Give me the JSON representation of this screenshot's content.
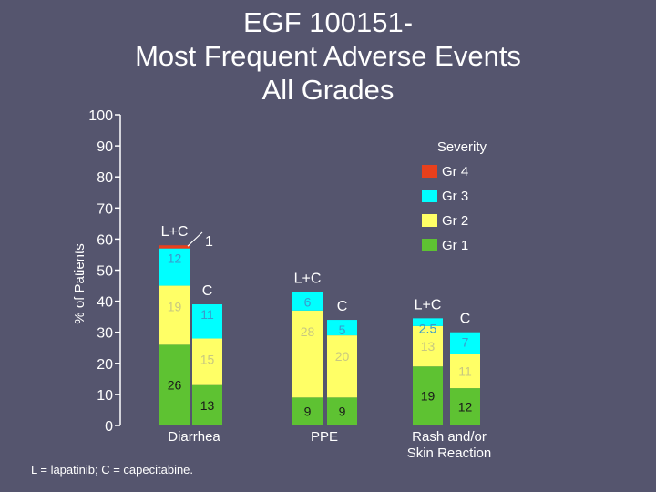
{
  "title_lines": [
    "EGF 100151-",
    "Most Frequent Adverse Events",
    "All Grades"
  ],
  "footnote": "L = lapatinib; C = capecitabine.",
  "colors": {
    "gr1": "#5ec232",
    "gr2": "#ffff66",
    "gr3": "#00ffff",
    "gr4": "#e8401c"
  },
  "chart_data": {
    "type": "bar",
    "stacked": true,
    "ylabel": "% of Patients",
    "ylim": [
      0,
      100
    ],
    "yticks": [
      0,
      10,
      20,
      30,
      40,
      50,
      60,
      70,
      80,
      90,
      100
    ],
    "categories": [
      "Diarrhea",
      "PPE",
      "Rash and/or\nSkin Reaction"
    ],
    "bars": [
      {
        "category": "Diarrhea",
        "group": "L+C",
        "segments": [
          26,
          19,
          12,
          1
        ],
        "labels": [
          "26",
          "19",
          "12",
          "1"
        ]
      },
      {
        "category": "Diarrhea",
        "group": "C",
        "segments": [
          13,
          15,
          11,
          0
        ],
        "labels": [
          "13",
          "15",
          "11",
          ""
        ]
      },
      {
        "category": "PPE",
        "group": "L+C",
        "segments": [
          9,
          28,
          6,
          0
        ],
        "labels": [
          "9",
          "28",
          "6",
          ""
        ]
      },
      {
        "category": "PPE",
        "group": "C",
        "segments": [
          9,
          20,
          5,
          0
        ],
        "labels": [
          "9",
          "20",
          "5",
          ""
        ]
      },
      {
        "category": "Rash and/or\nSkin Reaction",
        "group": "L+C",
        "segments": [
          19,
          13,
          2.5,
          0
        ],
        "labels": [
          "19",
          "13",
          "2.5",
          ""
        ]
      },
      {
        "category": "Rash and/or\nSkin Reaction",
        "group": "C",
        "segments": [
          12,
          11,
          7,
          0
        ],
        "labels": [
          "12",
          "11",
          "7",
          ""
        ]
      }
    ],
    "legend": {
      "title": "Severity",
      "position": "top-right",
      "entries": [
        "Gr 4",
        "Gr 3",
        "Gr 2",
        "Gr 1"
      ]
    }
  }
}
